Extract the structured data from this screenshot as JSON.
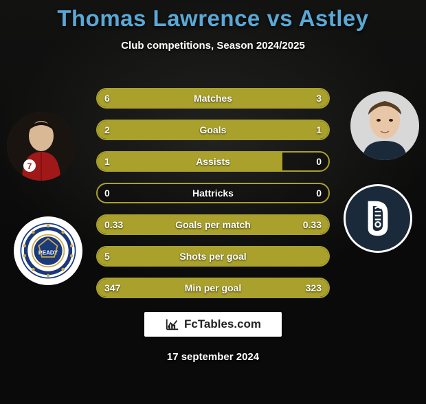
{
  "title": "Thomas Lawrence vs Astley",
  "subtitle": "Club competitions, Season 2024/2025",
  "date": "17 september 2024",
  "branding": "FcTables.com",
  "colors": {
    "title": "#5aa8d6",
    "bar": "#a9a12c",
    "bar_border": "#a9a12c",
    "text": "#ffffff"
  },
  "stats": [
    {
      "label": "Matches",
      "left_val": "6",
      "right_val": "3",
      "left_pct": 66,
      "right_pct": 34
    },
    {
      "label": "Goals",
      "left_val": "2",
      "right_val": "1",
      "left_pct": 66,
      "right_pct": 34
    },
    {
      "label": "Assists",
      "left_val": "1",
      "right_val": "0",
      "left_pct": 80,
      "right_pct": 0
    },
    {
      "label": "Hattricks",
      "left_val": "0",
      "right_val": "0",
      "left_pct": 0,
      "right_pct": 0
    },
    {
      "label": "Goals per match",
      "left_val": "0.33",
      "right_val": "0.33",
      "left_pct": 50,
      "right_pct": 50
    },
    {
      "label": "Shots per goal",
      "left_val": "5",
      "right_val": "",
      "left_pct": 100,
      "right_pct": 0
    },
    {
      "label": "Min per goal",
      "left_val": "347",
      "right_val": "323",
      "left_pct": 52,
      "right_pct": 48
    }
  ],
  "players": {
    "left": {
      "name": "Thomas Lawrence",
      "club": "Rangers"
    },
    "right": {
      "name": "Astley",
      "club": "Dundee"
    }
  }
}
